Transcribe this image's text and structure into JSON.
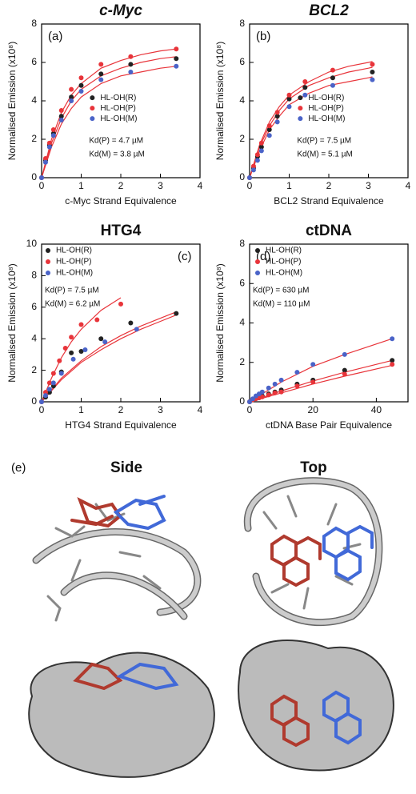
{
  "chart_data": [
    {
      "type": "scatter",
      "title": "c-Myc",
      "title_style": "italic",
      "panel": "(a)",
      "x_label": "c-Myc Strand Equivalence",
      "y_label": "Normalised Emission (x10⁸)",
      "xlim": [
        0,
        4
      ],
      "xticks": [
        0,
        1,
        2,
        3,
        4
      ],
      "ylim": [
        0,
        8
      ],
      "yticks": [
        0,
        2,
        4,
        6,
        8
      ],
      "legend": "center",
      "annotations": [
        "Kd(P) = 4.7 µM",
        "Kd(M) = 3.8 µM"
      ],
      "series": [
        {
          "name": "HL-OH(R)",
          "color": "#222222",
          "x": [
            0,
            0.1,
            0.2,
            0.3,
            0.5,
            0.75,
            1.0,
            1.5,
            2.25,
            3.4
          ],
          "values": [
            0,
            0.9,
            1.7,
            2.3,
            3.2,
            4.2,
            4.8,
            5.4,
            5.9,
            6.2
          ],
          "fit_x": [
            0,
            0.25,
            0.5,
            0.75,
            1,
            1.5,
            2,
            2.5,
            3,
            3.4
          ],
          "fit": [
            0,
            1.8,
            3.1,
            4.0,
            4.6,
            5.3,
            5.7,
            6.0,
            6.2,
            6.3
          ]
        },
        {
          "name": "HL-OH(P)",
          "color": "#e8343a",
          "x": [
            0,
            0.1,
            0.2,
            0.3,
            0.5,
            0.75,
            1.0,
            1.5,
            2.25,
            3.4
          ],
          "values": [
            0,
            1.0,
            1.8,
            2.5,
            3.5,
            4.6,
            5.2,
            5.9,
            6.3,
            6.7
          ],
          "fit_x": [
            0,
            0.25,
            0.5,
            0.75,
            1,
            1.5,
            2,
            2.5,
            3,
            3.4
          ],
          "fit": [
            0,
            2.0,
            3.4,
            4.3,
            4.9,
            5.7,
            6.1,
            6.4,
            6.6,
            6.7
          ]
        },
        {
          "name": "HL-OH(M)",
          "color": "#4a63c8",
          "x": [
            0,
            0.1,
            0.2,
            0.3,
            0.5,
            0.75,
            1.0,
            1.5,
            2.25,
            3.4
          ],
          "values": [
            0,
            0.8,
            1.6,
            2.2,
            3.0,
            4.0,
            4.5,
            5.1,
            5.5,
            5.8
          ],
          "fit_x": [
            0,
            0.25,
            0.5,
            0.75,
            1,
            1.5,
            2,
            2.5,
            3,
            3.4
          ],
          "fit": [
            0,
            1.6,
            2.8,
            3.6,
            4.2,
            4.9,
            5.3,
            5.5,
            5.7,
            5.8
          ]
        }
      ]
    },
    {
      "type": "scatter",
      "title": "BCL2",
      "title_style": "italic",
      "panel": "(b)",
      "x_label": "BCL2 Strand Equivalence",
      "y_label": "Normalised Emission (x10⁸)",
      "xlim": [
        0,
        4
      ],
      "xticks": [
        0,
        1,
        2,
        3,
        4
      ],
      "ylim": [
        0,
        8
      ],
      "yticks": [
        0,
        2,
        4,
        6,
        8
      ],
      "legend": "center",
      "annotations": [
        "Kd(P) = 7.5 µM",
        "Kd(M) = 5.1 µM"
      ],
      "series": [
        {
          "name": "HL-OH(R)",
          "color": "#222222",
          "x": [
            0,
            0.1,
            0.2,
            0.3,
            0.5,
            0.7,
            1.0,
            1.4,
            2.1,
            3.1
          ],
          "values": [
            0,
            0.5,
            1.1,
            1.6,
            2.5,
            3.2,
            4.1,
            4.7,
            5.2,
            5.5
          ],
          "fit_x": [
            0,
            0.25,
            0.5,
            0.75,
            1,
            1.5,
            2,
            2.5,
            3,
            3.1
          ],
          "fit": [
            0,
            1.6,
            2.7,
            3.5,
            4.1,
            4.8,
            5.2,
            5.5,
            5.7,
            5.75
          ]
        },
        {
          "name": "HL-OH(P)",
          "color": "#e8343a",
          "x": [
            0,
            0.1,
            0.2,
            0.3,
            0.5,
            0.7,
            1.0,
            1.4,
            2.1,
            3.1
          ],
          "values": [
            0,
            0.6,
            1.2,
            1.8,
            2.7,
            3.4,
            4.3,
            5.0,
            5.6,
            5.9
          ],
          "fit_x": [
            0,
            0.25,
            0.5,
            0.75,
            1,
            1.5,
            2,
            2.5,
            3,
            3.1
          ],
          "fit": [
            0,
            1.7,
            2.9,
            3.7,
            4.3,
            5.0,
            5.5,
            5.8,
            6.0,
            6.05
          ]
        },
        {
          "name": "HL-OH(M)",
          "color": "#4a63c8",
          "x": [
            0,
            0.1,
            0.2,
            0.3,
            0.5,
            0.7,
            1.0,
            1.4,
            2.1,
            3.1
          ],
          "values": [
            0,
            0.4,
            0.9,
            1.4,
            2.2,
            2.9,
            3.7,
            4.3,
            4.8,
            5.1
          ],
          "fit_x": [
            0,
            0.25,
            0.5,
            0.75,
            1,
            1.5,
            2,
            2.5,
            3,
            3.1
          ],
          "fit": [
            0,
            1.4,
            2.5,
            3.2,
            3.8,
            4.4,
            4.8,
            5.0,
            5.2,
            5.25
          ]
        }
      ]
    },
    {
      "type": "scatter",
      "title": "HTG4",
      "title_style": "normal",
      "panel": "(c)",
      "x_label": "HTG4 Strand Equivalence",
      "y_label": "Normalised Emission (x10⁸)",
      "xlim": [
        0,
        4
      ],
      "xticks": [
        0,
        1,
        2,
        3,
        4
      ],
      "ylim": [
        0,
        10
      ],
      "yticks": [
        0,
        2,
        4,
        6,
        8,
        10
      ],
      "legend": "upper left",
      "annotations": [
        "Kd(P) = 7.5 µM",
        "Kd(M) = 6.2 µM"
      ],
      "series": [
        {
          "name": "HL-OH(R)",
          "color": "#222222",
          "x": [
            0,
            0.1,
            0.2,
            0.3,
            0.5,
            0.75,
            1.0,
            1.5,
            2.25,
            3.4
          ],
          "values": [
            0,
            0.3,
            0.6,
            1.0,
            1.9,
            3.1,
            3.2,
            4.0,
            5.0,
            5.6
          ],
          "fit_x": [
            0,
            0.5,
            1,
            1.5,
            2,
            2.5,
            3,
            3.4
          ],
          "fit": [
            0,
            1.5,
            2.6,
            3.5,
            4.2,
            4.8,
            5.3,
            5.7
          ]
        },
        {
          "name": "HL-OH(P)",
          "color": "#e8343a",
          "x": [
            0,
            0.1,
            0.2,
            0.3,
            0.45,
            0.6,
            0.75,
            1.0,
            1.4,
            2.0
          ],
          "values": [
            0,
            0.6,
            1.2,
            1.8,
            2.6,
            3.4,
            4.1,
            4.9,
            5.2,
            6.2
          ],
          "fit_x": [
            0,
            0.25,
            0.5,
            0.75,
            1,
            1.5,
            2
          ],
          "fit": [
            0,
            1.5,
            2.8,
            3.8,
            4.6,
            5.8,
            6.6
          ]
        },
        {
          "name": "HL-OH(M)",
          "color": "#4a63c8",
          "x": [
            0,
            0.1,
            0.2,
            0.3,
            0.5,
            0.8,
            1.1,
            1.6,
            2.4
          ],
          "values": [
            0,
            0.4,
            0.8,
            1.2,
            1.8,
            2.7,
            3.3,
            3.8,
            4.6
          ],
          "fit_x": [
            0,
            0.5,
            1,
            1.5,
            2,
            2.5,
            3,
            3.4
          ],
          "fit": [
            0,
            1.4,
            2.5,
            3.3,
            4.0,
            4.6,
            5.1,
            5.5
          ]
        }
      ]
    },
    {
      "type": "scatter",
      "title": "ctDNA",
      "title_style": "normal",
      "panel": "(d)",
      "x_label": "ctDNA Base Pair Equivalence",
      "y_label": "Normalised Emission (x10⁸)",
      "xlim": [
        0,
        50
      ],
      "xticks": [
        0,
        20,
        40
      ],
      "ylim": [
        0,
        8
      ],
      "yticks": [
        0,
        2,
        4,
        6,
        8
      ],
      "legend": "upper left",
      "annotations": [
        "Kd(P) = 630 µM",
        "Kd(M) = 110 µM"
      ],
      "series": [
        {
          "name": "HL-OH(R)",
          "color": "#222222",
          "x": [
            0,
            1,
            2,
            3,
            4,
            6,
            8,
            10,
            15,
            20,
            30,
            45
          ],
          "values": [
            0,
            0.1,
            0.2,
            0.25,
            0.3,
            0.4,
            0.5,
            0.6,
            0.9,
            1.1,
            1.6,
            2.1
          ],
          "fit_x": [
            0,
            10,
            20,
            30,
            45
          ],
          "fit": [
            0,
            0.55,
            1.05,
            1.5,
            2.1
          ]
        },
        {
          "name": "HL-OH(P)",
          "color": "#e8343a",
          "x": [
            0,
            1,
            2,
            3,
            4,
            6,
            8,
            10,
            15,
            20,
            30,
            45
          ],
          "values": [
            0,
            0.1,
            0.15,
            0.2,
            0.25,
            0.35,
            0.45,
            0.5,
            0.8,
            1.0,
            1.4,
            1.9
          ],
          "fit_x": [
            0,
            10,
            20,
            30,
            45
          ],
          "fit": [
            0,
            0.45,
            0.9,
            1.3,
            1.85
          ]
        },
        {
          "name": "HL-OH(M)",
          "color": "#4a63c8",
          "x": [
            0,
            1,
            2,
            3,
            4,
            6,
            8,
            10,
            15,
            20,
            30,
            45
          ],
          "values": [
            0,
            0.15,
            0.3,
            0.4,
            0.5,
            0.7,
            0.9,
            1.1,
            1.5,
            1.9,
            2.4,
            3.2
          ],
          "fit_x": [
            0,
            10,
            20,
            30,
            45
          ],
          "fit": [
            0,
            1.0,
            1.8,
            2.4,
            3.2
          ]
        }
      ]
    }
  ],
  "panel_e": {
    "label": "(e)",
    "side": "Side",
    "top": "Top"
  }
}
